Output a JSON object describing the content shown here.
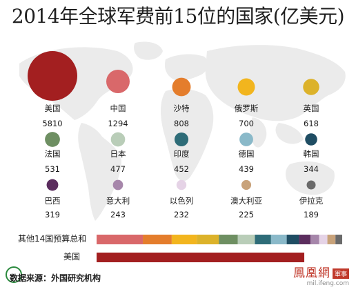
{
  "title": "2014年全球军费前15位的国家(亿美元)",
  "source": "数据来源：外国研究机构",
  "brand": {
    "name": "鳳凰網",
    "section": "軍事",
    "url": "mil.ifeng.com"
  },
  "chart_data": {
    "type": "bubble",
    "unit": "亿美元",
    "countries": [
      {
        "name": "美国",
        "value": 5810,
        "color": "#a31f20"
      },
      {
        "name": "中国",
        "value": 1294,
        "color": "#d9686a"
      },
      {
        "name": "沙特",
        "value": 808,
        "color": "#e47d2c"
      },
      {
        "name": "俄罗斯",
        "value": 700,
        "color": "#f2b51e"
      },
      {
        "name": "英国",
        "value": 618,
        "color": "#dcb22a"
      },
      {
        "name": "法国",
        "value": 531,
        "color": "#6e8f62"
      },
      {
        "name": "日本",
        "value": 477,
        "color": "#b9cdb8"
      },
      {
        "name": "印度",
        "value": 452,
        "color": "#2e6c78"
      },
      {
        "name": "德国",
        "value": 439,
        "color": "#8ab9c9"
      },
      {
        "name": "韩国",
        "value": 344,
        "color": "#1f4d63"
      },
      {
        "name": "巴西",
        "value": 319,
        "color": "#5b2d5e"
      },
      {
        "name": "意大利",
        "value": 243,
        "color": "#a686aa"
      },
      {
        "name": "以色列",
        "value": 232,
        "color": "#e5d3e6"
      },
      {
        "name": "澳大利亚",
        "value": 225,
        "color": "#c8a27a"
      },
      {
        "name": "伊拉克",
        "value": 189,
        "color": "#6a6a6a"
      }
    ],
    "comparison": {
      "bars": [
        {
          "label": "其他14国预算总和",
          "stacked": true
        },
        {
          "label": "美国",
          "stacked": false,
          "color": "#a31f20"
        }
      ]
    }
  }
}
